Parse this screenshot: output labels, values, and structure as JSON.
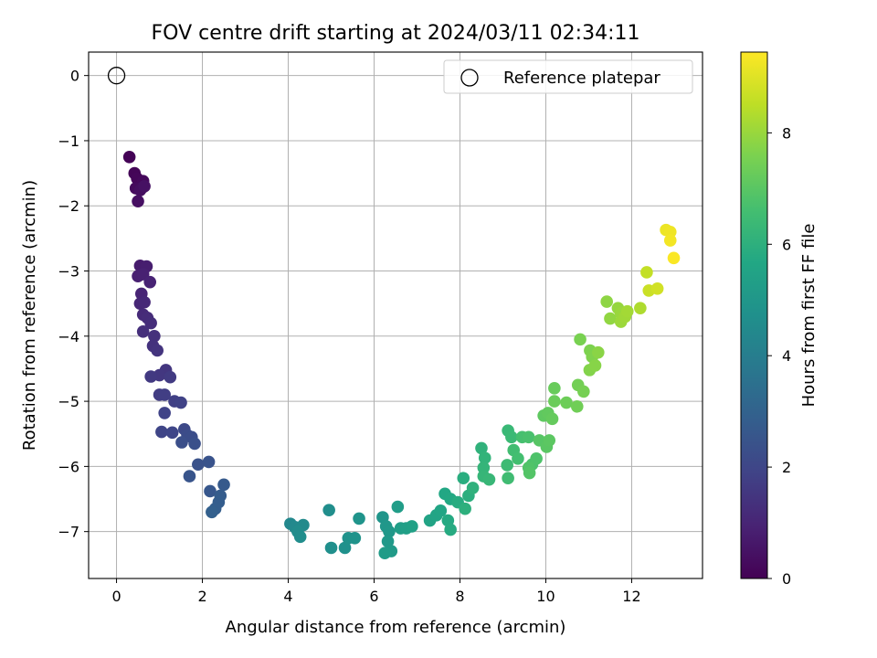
{
  "chart_data": {
    "type": "scatter",
    "title": "FOV centre drift starting at 2024/03/11 02:34:11",
    "xlabel": "Angular distance from reference (arcmin)",
    "ylabel": "Rotation from reference (arcmin)",
    "xlim": [
      -0.65,
      13.65
    ],
    "ylim": [
      -7.72,
      0.36
    ],
    "xticks": [
      0,
      2,
      4,
      6,
      8,
      10,
      12
    ],
    "yticks": [
      0,
      -1,
      -2,
      -3,
      -4,
      -5,
      -6,
      -7
    ],
    "xtick_labels": [
      "0",
      "2",
      "4",
      "6",
      "8",
      "10",
      "12"
    ],
    "ytick_labels": [
      "0",
      "−1",
      "−2",
      "−3",
      "−4",
      "−5",
      "−6",
      "−7"
    ],
    "grid": true,
    "legend": {
      "placement": "top-right",
      "entries": [
        "Reference platepar"
      ]
    },
    "reference_point": {
      "x": 0,
      "y": 0,
      "label": "Reference platepar"
    },
    "colorbar": {
      "label": "Hours from first FF file",
      "colormap": "viridis",
      "range": [
        0,
        9.45
      ],
      "ticks": [
        0,
        2,
        4,
        6,
        8
      ],
      "tick_labels": [
        "0",
        "2",
        "4",
        "6",
        "8"
      ]
    },
    "points": [
      {
        "x": 0.3,
        "y": -1.25,
        "h": 0.05
      },
      {
        "x": 0.42,
        "y": -1.5,
        "h": 0.1
      },
      {
        "x": 0.48,
        "y": -1.58,
        "h": 0.15
      },
      {
        "x": 0.62,
        "y": -1.62,
        "h": 0.2
      },
      {
        "x": 0.45,
        "y": -1.73,
        "h": 0.25
      },
      {
        "x": 0.6,
        "y": -1.72,
        "h": 0.3
      },
      {
        "x": 0.55,
        "y": -1.76,
        "h": 0.35
      },
      {
        "x": 0.5,
        "y": -1.93,
        "h": 0.4
      },
      {
        "x": 0.65,
        "y": -1.7,
        "h": 0.45
      },
      {
        "x": 0.55,
        "y": -2.92,
        "h": 0.75
      },
      {
        "x": 0.7,
        "y": -2.93,
        "h": 0.8
      },
      {
        "x": 0.5,
        "y": -3.08,
        "h": 0.85
      },
      {
        "x": 0.62,
        "y": -3.05,
        "h": 0.9
      },
      {
        "x": 0.78,
        "y": -3.17,
        "h": 0.95
      },
      {
        "x": 0.58,
        "y": -3.35,
        "h": 1.0
      },
      {
        "x": 0.55,
        "y": -3.5,
        "h": 1.05
      },
      {
        "x": 0.65,
        "y": -3.48,
        "h": 1.1
      },
      {
        "x": 0.62,
        "y": -3.67,
        "h": 1.15
      },
      {
        "x": 0.72,
        "y": -3.72,
        "h": 1.2
      },
      {
        "x": 0.8,
        "y": -3.8,
        "h": 1.25
      },
      {
        "x": 0.62,
        "y": -3.93,
        "h": 1.3
      },
      {
        "x": 0.88,
        "y": -4.0,
        "h": 1.35
      },
      {
        "x": 0.85,
        "y": -4.15,
        "h": 1.4
      },
      {
        "x": 0.95,
        "y": -4.22,
        "h": 1.45
      },
      {
        "x": 1.15,
        "y": -4.52,
        "h": 1.5
      },
      {
        "x": 1.0,
        "y": -4.6,
        "h": 1.55
      },
      {
        "x": 0.8,
        "y": -4.62,
        "h": 1.6
      },
      {
        "x": 1.25,
        "y": -4.63,
        "h": 1.65
      },
      {
        "x": 1.0,
        "y": -4.9,
        "h": 1.7
      },
      {
        "x": 1.12,
        "y": -4.9,
        "h": 1.75
      },
      {
        "x": 1.35,
        "y": -5.0,
        "h": 1.8
      },
      {
        "x": 1.5,
        "y": -5.02,
        "h": 1.85
      },
      {
        "x": 1.12,
        "y": -5.18,
        "h": 1.9
      },
      {
        "x": 1.05,
        "y": -5.47,
        "h": 1.95
      },
      {
        "x": 1.3,
        "y": -5.48,
        "h": 2.0
      },
      {
        "x": 1.58,
        "y": -5.43,
        "h": 2.1
      },
      {
        "x": 1.65,
        "y": -5.52,
        "h": 2.2
      },
      {
        "x": 1.75,
        "y": -5.55,
        "h": 2.25
      },
      {
        "x": 1.52,
        "y": -5.63,
        "h": 2.3
      },
      {
        "x": 1.82,
        "y": -5.65,
        "h": 2.35
      },
      {
        "x": 1.9,
        "y": -5.97,
        "h": 2.4
      },
      {
        "x": 2.15,
        "y": -5.93,
        "h": 2.45
      },
      {
        "x": 1.7,
        "y": -6.15,
        "h": 2.5
      },
      {
        "x": 2.18,
        "y": -6.38,
        "h": 2.6
      },
      {
        "x": 2.5,
        "y": -6.28,
        "h": 2.7
      },
      {
        "x": 2.42,
        "y": -6.45,
        "h": 2.75
      },
      {
        "x": 2.38,
        "y": -6.55,
        "h": 2.8
      },
      {
        "x": 2.3,
        "y": -6.65,
        "h": 2.85
      },
      {
        "x": 2.22,
        "y": -6.7,
        "h": 2.9
      },
      {
        "x": 4.05,
        "y": -6.88,
        "h": 4.4
      },
      {
        "x": 4.15,
        "y": -6.93,
        "h": 4.45
      },
      {
        "x": 4.35,
        "y": -6.9,
        "h": 4.5
      },
      {
        "x": 4.22,
        "y": -7.0,
        "h": 4.55
      },
      {
        "x": 4.28,
        "y": -7.08,
        "h": 4.6
      },
      {
        "x": 4.95,
        "y": -6.67,
        "h": 4.65
      },
      {
        "x": 5.0,
        "y": -7.25,
        "h": 4.7
      },
      {
        "x": 5.32,
        "y": -7.25,
        "h": 4.75
      },
      {
        "x": 5.4,
        "y": -7.1,
        "h": 4.8
      },
      {
        "x": 5.55,
        "y": -7.1,
        "h": 4.85
      },
      {
        "x": 5.65,
        "y": -6.8,
        "h": 4.9
      },
      {
        "x": 6.2,
        "y": -6.78,
        "h": 4.95
      },
      {
        "x": 6.28,
        "y": -6.92,
        "h": 5.0
      },
      {
        "x": 6.35,
        "y": -7.0,
        "h": 5.05
      },
      {
        "x": 6.32,
        "y": -7.15,
        "h": 5.1
      },
      {
        "x": 6.4,
        "y": -7.3,
        "h": 5.15
      },
      {
        "x": 6.25,
        "y": -7.33,
        "h": 5.2
      },
      {
        "x": 6.55,
        "y": -6.62,
        "h": 5.25
      },
      {
        "x": 6.62,
        "y": -6.95,
        "h": 5.3
      },
      {
        "x": 6.75,
        "y": -6.95,
        "h": 5.35
      },
      {
        "x": 6.88,
        "y": -6.92,
        "h": 5.4
      },
      {
        "x": 7.3,
        "y": -6.83,
        "h": 5.5
      },
      {
        "x": 7.45,
        "y": -6.75,
        "h": 5.55
      },
      {
        "x": 7.55,
        "y": -6.68,
        "h": 5.6
      },
      {
        "x": 7.65,
        "y": -6.42,
        "h": 5.65
      },
      {
        "x": 7.78,
        "y": -6.5,
        "h": 5.7
      },
      {
        "x": 7.72,
        "y": -6.83,
        "h": 5.75
      },
      {
        "x": 7.78,
        "y": -6.97,
        "h": 5.8
      },
      {
        "x": 7.95,
        "y": -6.55,
        "h": 5.85
      },
      {
        "x": 8.08,
        "y": -6.18,
        "h": 5.9
      },
      {
        "x": 8.2,
        "y": -6.45,
        "h": 5.95
      },
      {
        "x": 8.12,
        "y": -6.65,
        "h": 6.0
      },
      {
        "x": 8.3,
        "y": -6.33,
        "h": 6.05
      },
      {
        "x": 8.5,
        "y": -5.72,
        "h": 6.1
      },
      {
        "x": 8.58,
        "y": -5.87,
        "h": 6.15
      },
      {
        "x": 8.55,
        "y": -6.02,
        "h": 6.2
      },
      {
        "x": 8.55,
        "y": -6.15,
        "h": 6.25
      },
      {
        "x": 8.68,
        "y": -6.2,
        "h": 6.3
      },
      {
        "x": 9.12,
        "y": -5.45,
        "h": 6.35
      },
      {
        "x": 9.2,
        "y": -5.55,
        "h": 6.4
      },
      {
        "x": 9.1,
        "y": -5.98,
        "h": 6.45
      },
      {
        "x": 9.12,
        "y": -6.18,
        "h": 6.5
      },
      {
        "x": 9.25,
        "y": -5.75,
        "h": 6.55
      },
      {
        "x": 9.35,
        "y": -5.88,
        "h": 6.6
      },
      {
        "x": 9.45,
        "y": -5.55,
        "h": 6.65
      },
      {
        "x": 9.6,
        "y": -5.55,
        "h": 6.7
      },
      {
        "x": 9.68,
        "y": -5.97,
        "h": 6.75
      },
      {
        "x": 9.78,
        "y": -5.88,
        "h": 6.8
      },
      {
        "x": 9.6,
        "y": -6.02,
        "h": 6.85
      },
      {
        "x": 9.62,
        "y": -6.1,
        "h": 6.9
      },
      {
        "x": 9.85,
        "y": -5.6,
        "h": 6.95
      },
      {
        "x": 10.02,
        "y": -5.7,
        "h": 7.0
      },
      {
        "x": 10.08,
        "y": -5.6,
        "h": 7.05
      },
      {
        "x": 9.95,
        "y": -5.22,
        "h": 7.1
      },
      {
        "x": 10.05,
        "y": -5.18,
        "h": 7.15
      },
      {
        "x": 10.15,
        "y": -5.27,
        "h": 7.2
      },
      {
        "x": 10.2,
        "y": -4.8,
        "h": 7.25
      },
      {
        "x": 10.2,
        "y": -5.0,
        "h": 7.3
      },
      {
        "x": 10.48,
        "y": -5.02,
        "h": 7.35
      },
      {
        "x": 10.73,
        "y": -5.08,
        "h": 7.4
      },
      {
        "x": 10.75,
        "y": -4.75,
        "h": 7.45
      },
      {
        "x": 10.88,
        "y": -4.85,
        "h": 7.5
      },
      {
        "x": 10.8,
        "y": -4.05,
        "h": 7.55
      },
      {
        "x": 11.03,
        "y": -4.22,
        "h": 7.6
      },
      {
        "x": 11.08,
        "y": -4.32,
        "h": 7.65
      },
      {
        "x": 11.02,
        "y": -4.52,
        "h": 7.7
      },
      {
        "x": 11.15,
        "y": -4.45,
        "h": 7.75
      },
      {
        "x": 11.22,
        "y": -4.25,
        "h": 7.8
      },
      {
        "x": 11.42,
        "y": -3.47,
        "h": 7.85
      },
      {
        "x": 11.5,
        "y": -3.73,
        "h": 7.9
      },
      {
        "x": 11.68,
        "y": -3.57,
        "h": 7.95
      },
      {
        "x": 11.75,
        "y": -3.65,
        "h": 8.0
      },
      {
        "x": 11.75,
        "y": -3.78,
        "h": 8.05
      },
      {
        "x": 11.85,
        "y": -3.7,
        "h": 8.1
      },
      {
        "x": 11.9,
        "y": -3.62,
        "h": 8.15
      },
      {
        "x": 12.2,
        "y": -3.57,
        "h": 8.3
      },
      {
        "x": 12.35,
        "y": -3.02,
        "h": 8.6
      },
      {
        "x": 12.4,
        "y": -3.3,
        "h": 8.7
      },
      {
        "x": 12.6,
        "y": -3.27,
        "h": 8.8
      },
      {
        "x": 12.8,
        "y": -2.37,
        "h": 9.2
      },
      {
        "x": 12.9,
        "y": -2.4,
        "h": 9.25
      },
      {
        "x": 12.9,
        "y": -2.53,
        "h": 9.3
      },
      {
        "x": 12.98,
        "y": -2.8,
        "h": 9.4
      }
    ]
  }
}
